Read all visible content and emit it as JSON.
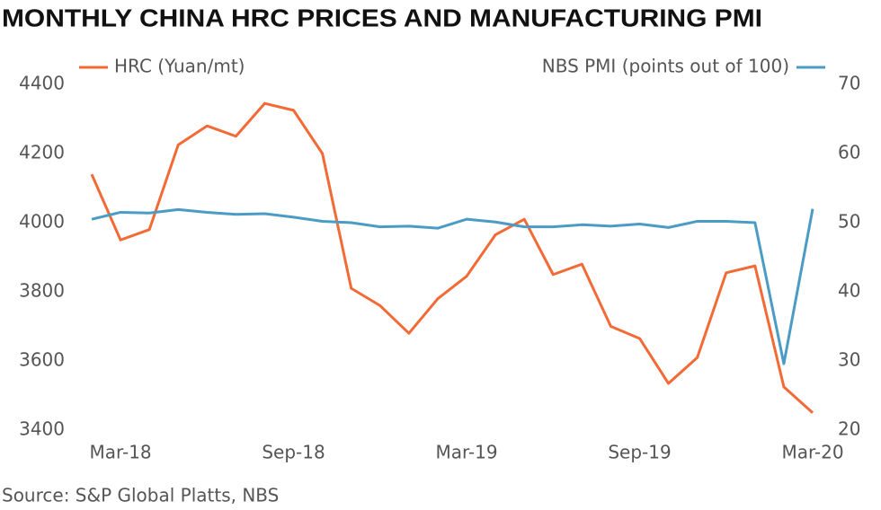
{
  "chart_data": {
    "type": "line",
    "title": "MONTHLY CHINA HRC PRICES AND MANUFACTURING PMI",
    "source": "Source: S&P Global Platts, NBS",
    "categories": [
      null,
      "Mar-18",
      null,
      null,
      null,
      null,
      null,
      "Sep-18",
      null,
      null,
      null,
      null,
      null,
      "Mar-19",
      null,
      null,
      null,
      null,
      null,
      "Sep-19",
      null,
      null,
      null,
      null,
      null,
      "Mar-20"
    ],
    "series": [
      {
        "name": "HRC (Yuan/mt)",
        "color": "#f26a35",
        "axis": "y",
        "values": [
          4140,
          3950,
          3980,
          4225,
          4280,
          4250,
          4345,
          4325,
          4200,
          3810,
          3760,
          3680,
          3780,
          3845,
          3965,
          4010,
          3850,
          3880,
          3700,
          3665,
          3535,
          3610,
          3855,
          3875,
          3525,
          3450
        ]
      },
      {
        "name": "NBS PMI (points out of 100)",
        "color": "#4a9cc4",
        "axis": "y2",
        "values": [
          50.5,
          51.5,
          51.4,
          51.9,
          51.5,
          51.2,
          51.3,
          50.8,
          50.2,
          50.0,
          49.4,
          49.5,
          49.2,
          50.5,
          50.1,
          49.4,
          49.4,
          49.7,
          49.5,
          49.8,
          49.3,
          50.2,
          50.2,
          50.0,
          29.6,
          52.0
        ]
      }
    ],
    "ylim": [
      3400,
      4400
    ],
    "yticks": [
      3400,
      3600,
      3800,
      4000,
      4200,
      4400
    ],
    "y2lim": [
      20,
      70
    ],
    "y2ticks": [
      20,
      30,
      40,
      50,
      60,
      70
    ],
    "grid": false
  }
}
